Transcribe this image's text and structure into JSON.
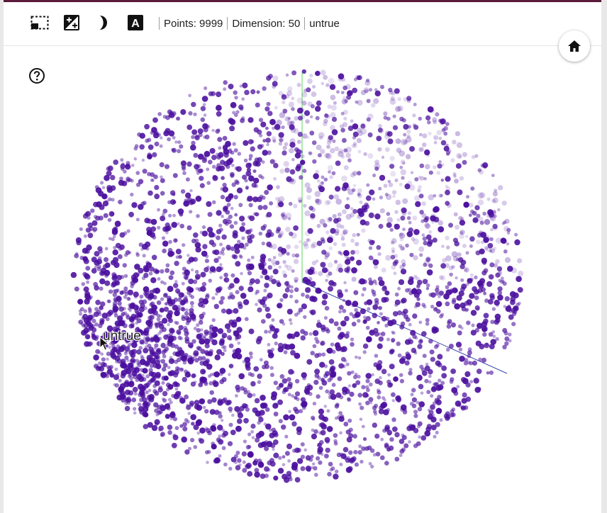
{
  "toolbar": {
    "icons": [
      "selection-icon",
      "night-contrast-icon",
      "dark-mode-icon",
      "label-text-icon"
    ],
    "label_glyph": "A",
    "points_text": "Points: 9999",
    "dimension_text": "Dimension: 50",
    "selected_label": "untrue"
  },
  "canvas": {
    "hover_label": "untrue",
    "point_color": "#4b0f9e",
    "x_axis_color": "#3949ab",
    "y_axis_color": "#5cd65c",
    "point_count": 9999
  },
  "buttons": {
    "home_icon": "home-icon",
    "help_icon": "help-icon"
  }
}
